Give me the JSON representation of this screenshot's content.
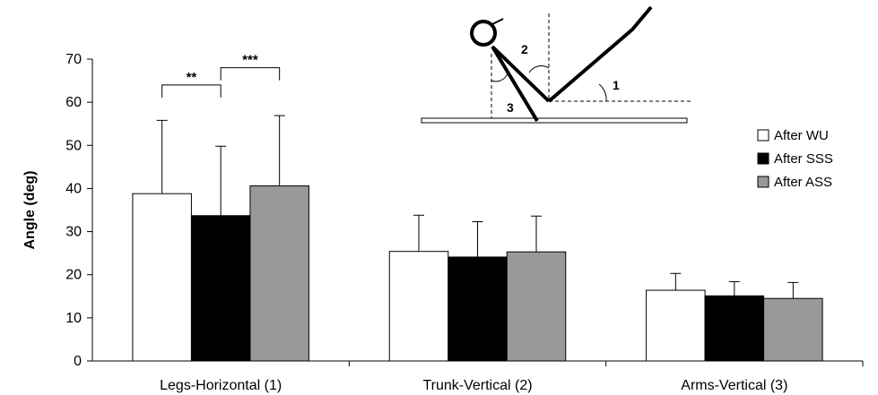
{
  "chart_data": {
    "type": "bar",
    "ylabel": "Angle (deg)",
    "xlabel": "",
    "ylim": [
      0,
      70
    ],
    "yticks": [
      0,
      10,
      20,
      30,
      40,
      50,
      60,
      70
    ],
    "categories": [
      "Legs-Horizontal (1)",
      "Trunk-Vertical (2)",
      "Arms-Vertical (3)"
    ],
    "series": [
      {
        "name": "After WU",
        "color": "#ffffff",
        "values": [
          38.8,
          25.4,
          16.4
        ],
        "errors": [
          17.0,
          8.4,
          3.9
        ]
      },
      {
        "name": "After SSS",
        "color": "#000000",
        "values": [
          33.7,
          24.1,
          15.1
        ],
        "errors": [
          16.1,
          8.2,
          3.3
        ]
      },
      {
        "name": "After ASS",
        "color": "#999999",
        "values": [
          40.6,
          25.3,
          14.5
        ],
        "errors": [
          16.3,
          8.3,
          3.7
        ]
      }
    ],
    "significance": [
      {
        "label": "**",
        "category": 0,
        "from": 0,
        "to": 1,
        "y": 64
      },
      {
        "label": "***",
        "category": 0,
        "from": 1,
        "to": 2,
        "y": 68
      }
    ],
    "legend": {
      "position": "right"
    },
    "grid": false,
    "inset_labels": [
      "1",
      "2",
      "3"
    ]
  }
}
